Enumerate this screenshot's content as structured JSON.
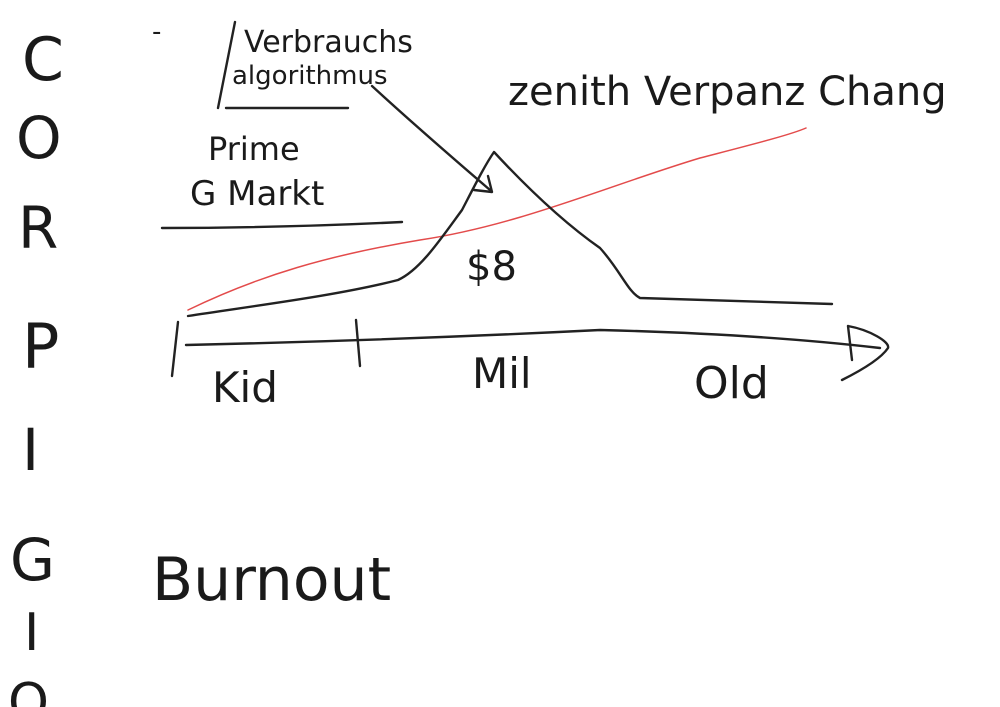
{
  "side_letters": [
    "C",
    "O",
    "R",
    "P",
    "I",
    "G",
    "I",
    "O"
  ],
  "dash": "-",
  "box_label_line1": "Verbrauchs",
  "box_label_line2": "algorithmus",
  "prime_label": "Prime",
  "market_label": "G Markt",
  "peak_label": "zenith Verpanz Chang",
  "peak_value": "$8",
  "axis_labels": [
    "Kid",
    "Mil",
    "Old"
  ],
  "bottom_label": "Burnout",
  "colors": {
    "ink": "#222222",
    "red_curve": "#e34b4b"
  }
}
